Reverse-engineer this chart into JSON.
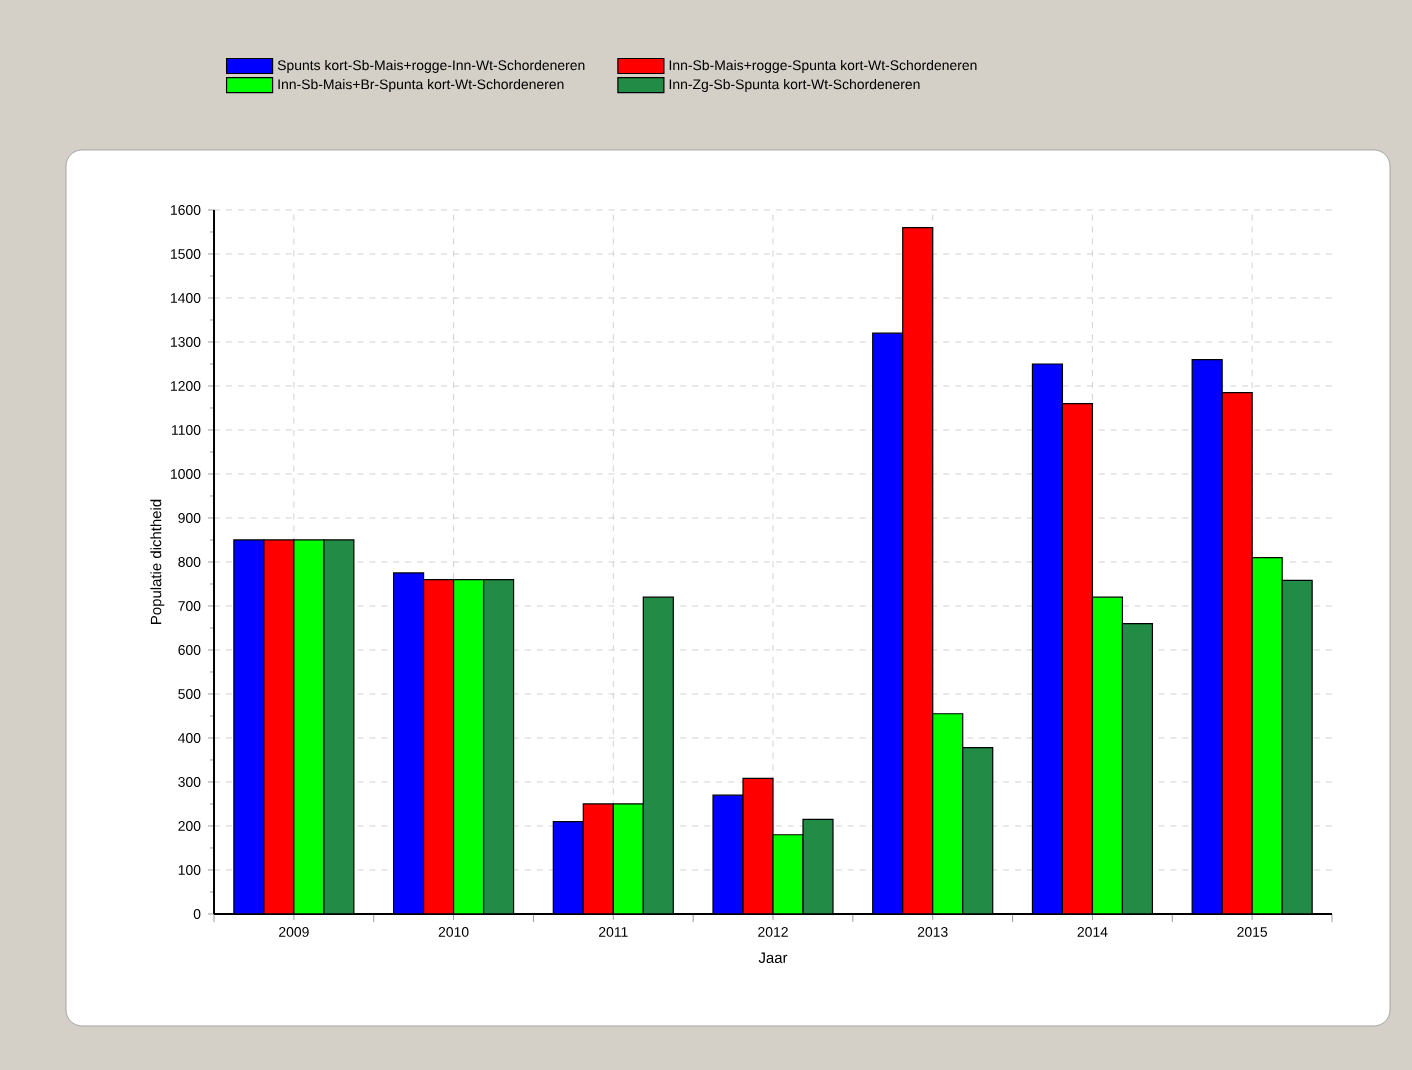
{
  "chart_data": {
    "type": "bar",
    "xlabel": "Jaar",
    "ylabel": "Populatie dichtheid",
    "categories": [
      "2009",
      "2010",
      "2011",
      "2012",
      "2013",
      "2014",
      "2015"
    ],
    "series": [
      {
        "name": "Spunts kort-Sb-Mais+rogge-Inn-Wt-Schordeneren",
        "color": "#0000ff",
        "values": [
          850,
          775,
          210,
          270,
          1320,
          1250,
          1260
        ]
      },
      {
        "name": "Inn-Sb-Mais+rogge-Spunta kort-Wt-Schordeneren",
        "color": "#ff0000",
        "values": [
          850,
          760,
          250,
          308,
          1560,
          1160,
          1185
        ]
      },
      {
        "name": "Inn-Sb-Mais+Br-Spunta kort-Wt-Schordeneren",
        "color": "#00ff00",
        "values": [
          850,
          760,
          250,
          180,
          455,
          720,
          810
        ]
      },
      {
        "name": "Inn-Zg-Sb-Spunta kort-Wt-Schordeneren",
        "color": "#228b45",
        "values": [
          850,
          760,
          720,
          215,
          378,
          660,
          758
        ]
      }
    ],
    "ylim": [
      0,
      1600
    ],
    "yticks": [
      0,
      100,
      200,
      300,
      400,
      500,
      600,
      700,
      800,
      900,
      1000,
      1100,
      1200,
      1300,
      1400,
      1500,
      1600
    ],
    "grid": true,
    "legend": "top"
  }
}
